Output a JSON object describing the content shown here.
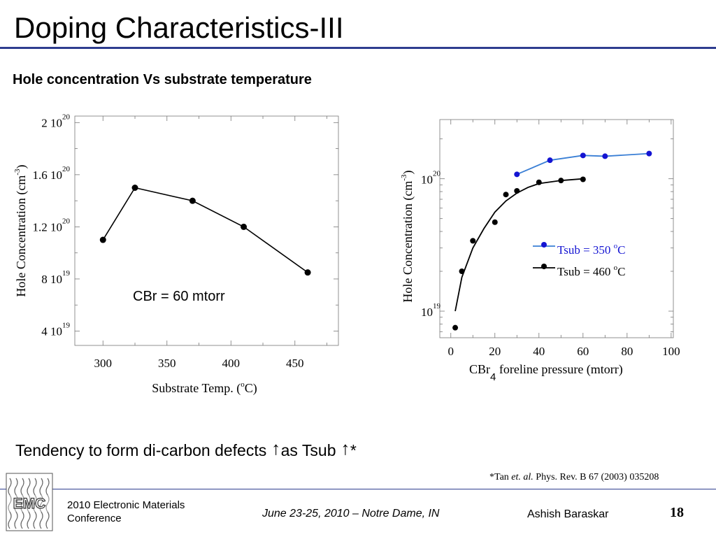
{
  "slide": {
    "title": "Doping Characteristics-III",
    "subtitle": "Hole concentration Vs substrate temperature",
    "tendency": {
      "text1": "Tendency to form di-carbon defects",
      "text2": "as Tsub",
      "text3": "*"
    },
    "citation": {
      "prefix": "*Tan ",
      "italic": "et. al.",
      "suffix": " Phys. Rev. B 67 (2003) 035208"
    },
    "footer": {
      "conference_line1": "2010 Electronic Materials",
      "conference_line2": "Conference",
      "date": "June 23-25, 2010 – Notre Dame, IN",
      "author": "Ashish Baraskar",
      "page": "18",
      "logo_text": "EMC"
    },
    "colors": {
      "title_rule": "#2e3d8f",
      "series_350": "#1414d2",
      "series_350_line": "#3a7fd5",
      "series_460": "#000000"
    }
  },
  "chart_data": [
    {
      "type": "line",
      "x": [
        300,
        325,
        370,
        410,
        460
      ],
      "y": [
        1.1e+20,
        1.5e+20,
        1.4e+20,
        1.2e+20,
        8.5e+19
      ],
      "xlim": [
        278,
        484
      ],
      "ylim": [
        2.9e+19,
        2.05e+20
      ],
      "xticks": [
        300,
        350,
        400,
        450
      ],
      "xtick_labels": [
        "300",
        "350",
        "400",
        "450"
      ],
      "yticks": [
        4e+19,
        8e+19,
        1.2e+20,
        1.6e+20,
        2e+20
      ],
      "ytick_labels": [
        {
          "mant": "4 10",
          "exp": "19"
        },
        {
          "mant": "8 10",
          "exp": "19"
        },
        {
          "mant": "1.2 10",
          "exp": "20"
        },
        {
          "mant": "1.6 10",
          "exp": "20"
        },
        {
          "mant": "2 10",
          "exp": "20"
        }
      ],
      "xlabel": {
        "pre": "Substrate Temp. (",
        "sup": "o",
        "post": "C)"
      },
      "ylabel": {
        "pre": "Hole Concentration (cm",
        "sup": "-3",
        "post": ")"
      },
      "annotation": "CBr = 60 mtorr"
    },
    {
      "type": "line",
      "yscale": "log",
      "xlim": [
        -5,
        101
      ],
      "ylim": [
        6.3e+18,
        2.8e+20
      ],
      "xticks": [
        0,
        20,
        40,
        60,
        80,
        100
      ],
      "xtick_labels": [
        "0",
        "20",
        "40",
        "60",
        "80",
        "100"
      ],
      "yticks": [
        1e+19,
        1e+20
      ],
      "ytick_labels": [
        {
          "mant": "10",
          "exp": "19"
        },
        {
          "mant": "10",
          "exp": "20"
        }
      ],
      "xlabel": {
        "pre": "CBr",
        "sub": "4",
        "post": " foreline pressure (mtorr)"
      },
      "ylabel": {
        "pre": "Hole Concentration (cm",
        "sup": "-3",
        "post": ")"
      },
      "series": [
        {
          "name": "Tsub = 350 oC",
          "legend": {
            "pre": "Tsub = 350 ",
            "sup": "o",
            "post": "C"
          },
          "color": "#1414d2",
          "line_color": "#3a7fd5",
          "x": [
            30,
            45,
            60,
            70,
            90
          ],
          "y": [
            1.08e+20,
            1.38e+20,
            1.5e+20,
            1.48e+20,
            1.55e+20
          ],
          "fit_x": [
            30,
            45,
            60,
            70,
            90
          ],
          "fit_y": [
            1.08e+20,
            1.38e+20,
            1.5e+20,
            1.48e+20,
            1.55e+20
          ]
        },
        {
          "name": "Tsub = 460 oC",
          "legend": {
            "pre": "Tsub = 460 ",
            "sup": "o",
            "post": "C"
          },
          "color": "#000000",
          "line_color": "#000000",
          "x": [
            2,
            5,
            10,
            20,
            25,
            30,
            40,
            50,
            60
          ],
          "y": [
            7.5e+18,
            2e+19,
            3.4e+19,
            4.7e+19,
            7.6e+19,
            8.1e+19,
            9.4e+19,
            9.7e+19,
            9.9e+19
          ],
          "fit_x": [
            2,
            5,
            10,
            15,
            20,
            25,
            30,
            35,
            40,
            50,
            60
          ],
          "fit_y": [
            1e+19,
            1.8e+19,
            3e+19,
            4.2e+19,
            5.6e+19,
            6.8e+19,
            7.8e+19,
            8.6e+19,
            9.2e+19,
            9.7e+19,
            1e+20
          ]
        }
      ]
    }
  ]
}
